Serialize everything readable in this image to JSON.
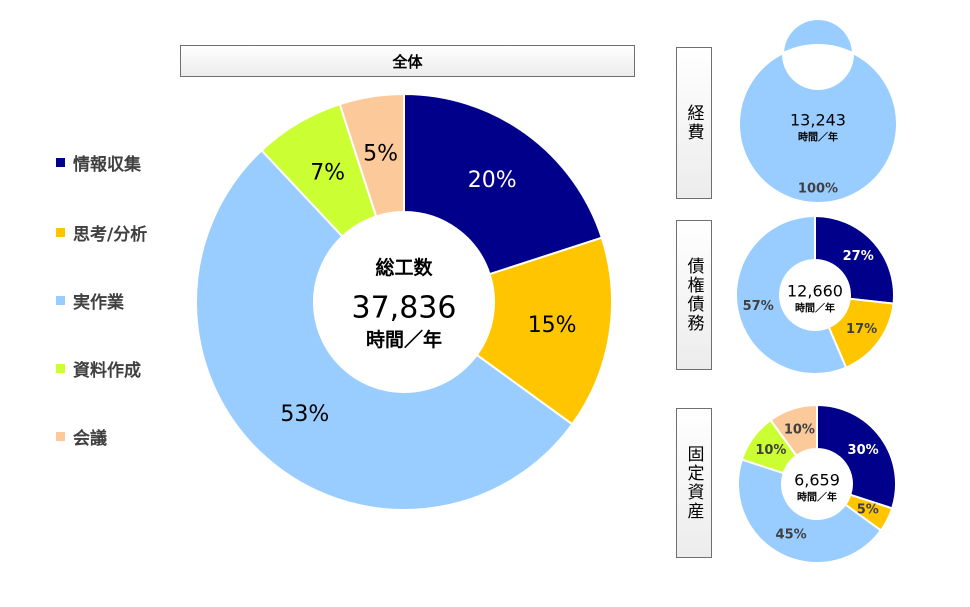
{
  "legend": {
    "items": [
      {
        "label": "情報収集",
        "color": "#00008B"
      },
      {
        "label": "思考/分析",
        "color": "#FFC600"
      },
      {
        "label": "実作業",
        "color": "#99CCFF"
      },
      {
        "label": "資料作成",
        "color": "#CCFF33"
      },
      {
        "label": "会議",
        "color": "#FCC99B"
      }
    ]
  },
  "main": {
    "title": "全体",
    "center_label": "総工数",
    "center_value": "37,836",
    "center_unit": "時間／年"
  },
  "side_panels": [
    {
      "label": "経費"
    },
    {
      "label": "債権債務"
    },
    {
      "label": "固定資産"
    }
  ],
  "chart_data": [
    {
      "type": "pie",
      "title": "全体",
      "categories": [
        "情報収集",
        "思考/分析",
        "実作業",
        "資料作成",
        "会議"
      ],
      "values": [
        20,
        15,
        53,
        7,
        5
      ],
      "data_labels": [
        "20%",
        "15%",
        "53%",
        "7%",
        "5%"
      ],
      "center_text": [
        "総工数",
        "37,836",
        "時間／年"
      ],
      "legend_position": "left"
    },
    {
      "type": "pie",
      "title": "経費",
      "categories": [
        "実作業"
      ],
      "values": [
        100
      ],
      "data_labels": [
        "100%"
      ],
      "center_text": [
        "13,243",
        "時間／年"
      ]
    },
    {
      "type": "pie",
      "title": "債権債務",
      "categories": [
        "情報収集",
        "思考/分析",
        "実作業"
      ],
      "values": [
        27,
        17,
        57
      ],
      "data_labels": [
        "27%",
        "17%",
        "57%"
      ],
      "center_text": [
        "12,660",
        "時間／年"
      ]
    },
    {
      "type": "pie",
      "title": "固定資産",
      "categories": [
        "情報収集",
        "思考/分析",
        "実作業",
        "資料作成",
        "会議"
      ],
      "values": [
        30,
        5,
        45,
        10,
        10
      ],
      "data_labels": [
        "30%",
        "5%",
        "45%",
        "10%",
        "10%"
      ],
      "center_text": [
        "6,659",
        "時間／年"
      ]
    }
  ]
}
